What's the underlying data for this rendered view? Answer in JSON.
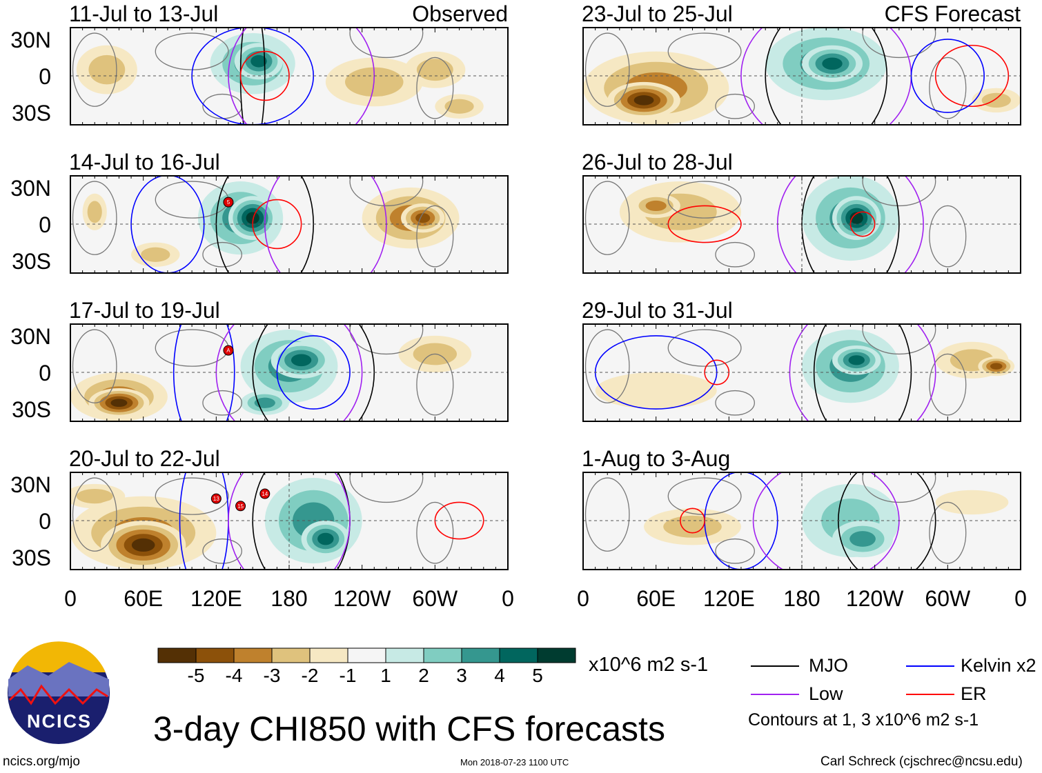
{
  "chart_data": {
    "type": "heatmap",
    "title": "3-day CHI850 with CFS forecasts",
    "units": "x10^6 m2 s-1",
    "observed_label": "Observed",
    "forecast_label": "CFS Forecast",
    "panels": [
      {
        "label": "11-Jul to 13-Jul",
        "kind": "observed"
      },
      {
        "label": "14-Jul to 16-Jul",
        "kind": "observed"
      },
      {
        "label": "17-Jul to 19-Jul",
        "kind": "observed"
      },
      {
        "label": "20-Jul to 22-Jul",
        "kind": "observed"
      },
      {
        "label": "23-Jul to 25-Jul",
        "kind": "forecast"
      },
      {
        "label": "26-Jul to 28-Jul",
        "kind": "forecast"
      },
      {
        "label": "29-Jul to 31-Jul",
        "kind": "forecast"
      },
      {
        "label": "1-Aug to 3-Aug",
        "kind": "forecast"
      }
    ],
    "ytick_labels": [
      "30N",
      "0",
      "30S"
    ],
    "xtick_labels": [
      "0",
      "60E",
      "120E",
      "180",
      "120W",
      "60W",
      "0"
    ],
    "xlim_deg": [
      0,
      360
    ],
    "ylim_deg": [
      -40,
      40
    ],
    "colorbar": {
      "ticks": [
        "-5",
        "-4",
        "-3",
        "-2",
        "-1",
        "1",
        "2",
        "3",
        "4",
        "5"
      ],
      "colors": [
        "#543005",
        "#8c510a",
        "#bf812d",
        "#dfc27d",
        "#f6e8c3",
        "#f5f5f5",
        "#c7eae5",
        "#80cdc1",
        "#35978f",
        "#01665e",
        "#003c30"
      ]
    },
    "legend": [
      {
        "name": "MJO",
        "color": "#000000"
      },
      {
        "name": "Kelvin x2",
        "color": "#0000ff"
      },
      {
        "name": "Low",
        "color": "#a020f0"
      },
      {
        "name": "ER",
        "color": "#ff0000"
      }
    ],
    "contour_note": "Contours at 1, 3 x10^6 m2 s-1",
    "storm_markers": [
      {
        "panel": 1,
        "id": "5"
      },
      {
        "panel": 2,
        "id": "A"
      },
      {
        "panel": 3,
        "id": "13"
      },
      {
        "panel": 3,
        "id": "15"
      },
      {
        "panel": 3,
        "id": "14"
      }
    ]
  },
  "footer": {
    "logo_text": "NCICS",
    "url": "ncics.org/mjo",
    "timestamp": "Mon 2018-07-23 1100 UTC",
    "author": "Carl Schreck (cjschrec@ncsu.edu)"
  }
}
